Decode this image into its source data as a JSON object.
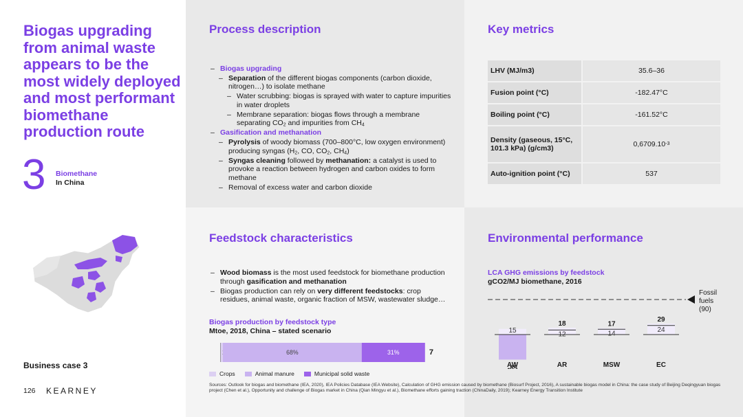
{
  "title": "Biogas upgrading from animal waste appears to be the most widely deployed and most performant biomethane production route",
  "section": {
    "number": "3",
    "label_line1": "Biomethane",
    "label_line2": "In China"
  },
  "footer": {
    "business_case": "Business case 3",
    "page_number": "126",
    "brand": "KEARNEY"
  },
  "colors": {
    "accent": "#7b3fe4",
    "light_purple": "#c9b3f0",
    "mid_purple": "#b48cf0",
    "dark_purple": "#8c52e6"
  },
  "process": {
    "title": "Process description",
    "items": [
      {
        "level": 1,
        "dash": "–",
        "text": "Biogas upgrading"
      },
      {
        "level": 2,
        "dash": "–",
        "bold": "Separation",
        "text": " of the different biogas components (carbon dioxide, nitrogen…) to isolate methane"
      },
      {
        "level": 3,
        "dash": "–",
        "text": "Water scrubbing: biogas is sprayed with water to capture impurities in water droplets"
      },
      {
        "level": 3,
        "dash": "–",
        "text_before": "Membrane separation: biogas flows through a membrane separating CO",
        "sub1": "2",
        "text_mid": " and impurities from CH",
        "sub2": "4"
      },
      {
        "level": 1,
        "dash": "–",
        "text": "Gasification and methanation"
      },
      {
        "level": 2,
        "dash": "–",
        "bold": "Pyrolysis",
        "text_before": " of woody biomass (700–800°C, low oxygen environment) producing syngas (H",
        "s1": "2",
        "t2": ", CO, CO",
        "s2": "2",
        "t3": ", CH",
        "s3": "4",
        "t4": ")"
      },
      {
        "level": 2,
        "dash": "–",
        "bold": "Syngas cleaning",
        "text_mid": " followed by ",
        "bold2": "methanation:",
        "text": " a catalyst is used to provoke a reaction between hydrogen and carbon oxides to form methane"
      },
      {
        "level": 2,
        "dash": "–",
        "text": "Removal of excess water and carbon dioxide"
      }
    ]
  },
  "metrics": {
    "title": "Key metrics",
    "rows": [
      {
        "label": "LHV (MJ/m3)",
        "value": "35.6–36"
      },
      {
        "label": "Fusion point (°C)",
        "value": "-182.47°C"
      },
      {
        "label": "Boiling point (°C)",
        "value": "-161.52°C"
      },
      {
        "label": "Density (gaseous, 15°C, 101.3 kPa) (g/cm3)",
        "value": "0,6709.10",
        "value_sup": "-3"
      },
      {
        "label": "Auto-ignition point (°C)",
        "value": "537"
      }
    ]
  },
  "feedstock": {
    "title": "Feedstock characteristics",
    "items": [
      {
        "dash": "–",
        "bold": "Wood biomass",
        "text": " is the most used feedstock for biomethane production through ",
        "bold2": "gasification and methanation"
      },
      {
        "dash": "–",
        "text": "Biogas production can rely on ",
        "bold": "very different feedstocks",
        "text2": ": crop residues, animal waste, organic fraction of MSW, wastewater sludge…"
      }
    ],
    "chart_title": "Biogas production by feedstock type",
    "chart_caption": "Mtoe, 2018, China – stated scenario"
  },
  "environment": {
    "title": "Environmental performance",
    "chart_title": "LCA GHG emissions by feedstock",
    "chart_caption": "gCO2/MJ biomethane, 2016"
  },
  "chart_data": [
    {
      "type": "bar",
      "orientation": "horizontal-stacked",
      "series": [
        {
          "name": "Crops",
          "values": [
            1
          ],
          "label": "1%",
          "color": "#dcd0f2"
        },
        {
          "name": "Animal manure",
          "values": [
            68
          ],
          "label": "68%",
          "color": "#c9b3f0"
        },
        {
          "name": "Municipal solid waste",
          "values": [
            31
          ],
          "label": "31%",
          "color": "#9d63ea"
        }
      ],
      "total": "7",
      "legend_position": "bottom"
    },
    {
      "type": "bar",
      "orientation": "waterfall",
      "categories": [
        "AW",
        "AR",
        "MSW",
        "EC"
      ],
      "positive": [
        "15",
        "18",
        "17",
        "29"
      ],
      "net": [
        "-85",
        "12",
        "14",
        "24"
      ],
      "reference": {
        "label_line1": "Fossil",
        "label_line2": "fuels",
        "label_line3": "(90)",
        "value": 90
      }
    }
  ],
  "sources": "Sources: Outlook for biogas and biomethane (IEA, 2020), IEA Policies Database (IEA Website), Calculation of GHG emission caused by biomethane (Biosurf Project, 2016), A sustainable biogas model in China: the case study of Beijing Deqingyuan biogas project (Chen et al.), Opportunity and challenge of Biogas market in China (Qian Mingyu et al.), Biomethane efforts gaining traction (ChinaDaily, 2019); Kearney Energy Transition Institute"
}
